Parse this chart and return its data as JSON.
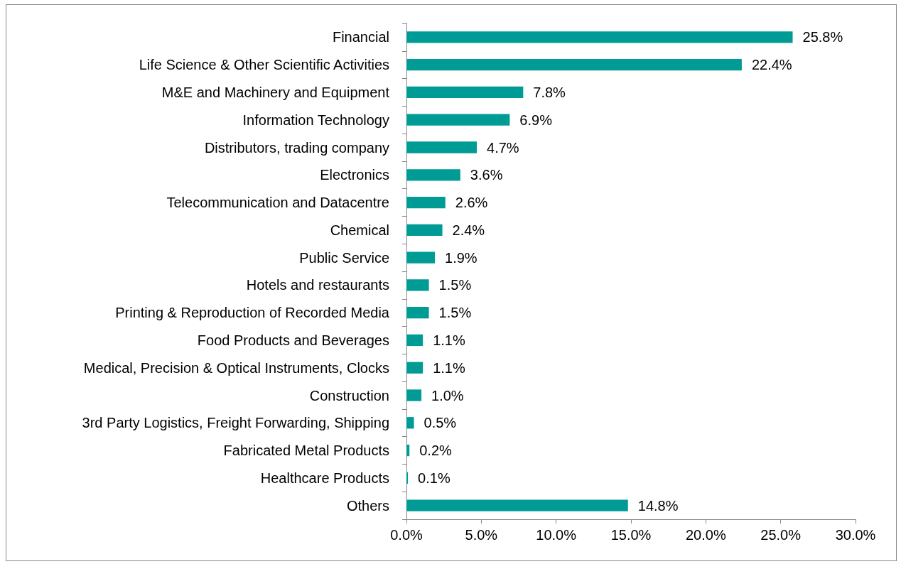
{
  "chart_data": {
    "type": "bar",
    "orientation": "horizontal",
    "categories": [
      "Financial",
      "Life Science & Other Scientific Activities",
      "M&E and Machinery and Equipment",
      "Information Technology",
      "Distributors, trading company",
      "Electronics",
      "Telecommunication and Datacentre",
      "Chemical",
      "Public Service",
      "Hotels and restaurants",
      "Printing & Reproduction of Recorded Media",
      "Food Products and Beverages",
      "Medical, Precision & Optical Instruments, Clocks",
      "Construction",
      "3rd Party Logistics, Freight Forwarding, Shipping",
      "Fabricated Metal Products",
      "Healthcare Products",
      "Others"
    ],
    "values": [
      25.8,
      22.4,
      7.8,
      6.9,
      4.7,
      3.6,
      2.6,
      2.4,
      1.9,
      1.5,
      1.5,
      1.1,
      1.1,
      1.0,
      0.5,
      0.2,
      0.1,
      14.8
    ],
    "value_labels": [
      "25.8%",
      "22.4%",
      "7.8%",
      "6.9%",
      "4.7%",
      "3.6%",
      "2.6%",
      "2.4%",
      "1.9%",
      "1.5%",
      "1.5%",
      "1.1%",
      "1.1%",
      "1.0%",
      "0.5%",
      "0.2%",
      "0.1%",
      "14.8%"
    ],
    "color": "#009b95",
    "xlim": [
      0,
      30
    ],
    "xticks": [
      {
        "value": 0,
        "label": "0.0%"
      },
      {
        "value": 5,
        "label": "5.0%"
      },
      {
        "value": 10,
        "label": "10.0%"
      },
      {
        "value": 15,
        "label": "15.0%"
      },
      {
        "value": 20,
        "label": "20.0%"
      },
      {
        "value": 25,
        "label": "25.0%"
      },
      {
        "value": 30,
        "label": "30.0%"
      }
    ],
    "tick_labels": true
  }
}
